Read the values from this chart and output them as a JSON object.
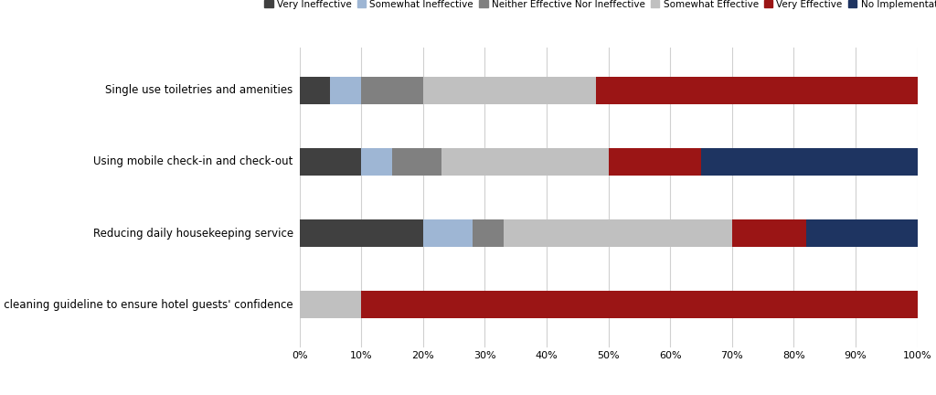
{
  "categories": [
    "Implementing a new cleaning guideline to ensure hotel guests' confidence",
    "Reducing daily housekeeping service",
    "Using mobile check-in and check-out",
    "Single use toiletries and amenities"
  ],
  "series": [
    {
      "name": "Very Ineffective",
      "color": "#404040",
      "values": [
        0,
        20,
        10,
        5
      ]
    },
    {
      "name": "Somewhat Ineffective",
      "color": "#9eb6d4",
      "values": [
        0,
        8,
        5,
        5
      ]
    },
    {
      "name": "Neither Effective Nor Ineffective",
      "color": "#808080",
      "values": [
        0,
        5,
        8,
        10
      ]
    },
    {
      "name": "Somewhat Effective",
      "color": "#c0c0c0",
      "values": [
        10,
        37,
        27,
        28
      ]
    },
    {
      "name": "Very Effective",
      "color": "#9b1515",
      "values": [
        90,
        12,
        15,
        52
      ]
    },
    {
      "name": "No Implementation",
      "color": "#1e3461",
      "values": [
        0,
        18,
        35,
        0
      ]
    }
  ],
  "xlim": [
    0,
    100
  ],
  "xticks": [
    0,
    10,
    20,
    30,
    40,
    50,
    60,
    70,
    80,
    90,
    100
  ],
  "xtick_labels": [
    "0%",
    "10%",
    "20%",
    "30%",
    "40%",
    "50%",
    "60%",
    "70%",
    "80%",
    "90%",
    "100%"
  ],
  "background_color": "#ffffff",
  "bar_height": 0.38,
  "legend_fontsize": 7.5,
  "tick_fontsize": 8,
  "label_fontsize": 8.5,
  "figsize": [
    10.24,
    4.32
  ],
  "dpi": 100
}
